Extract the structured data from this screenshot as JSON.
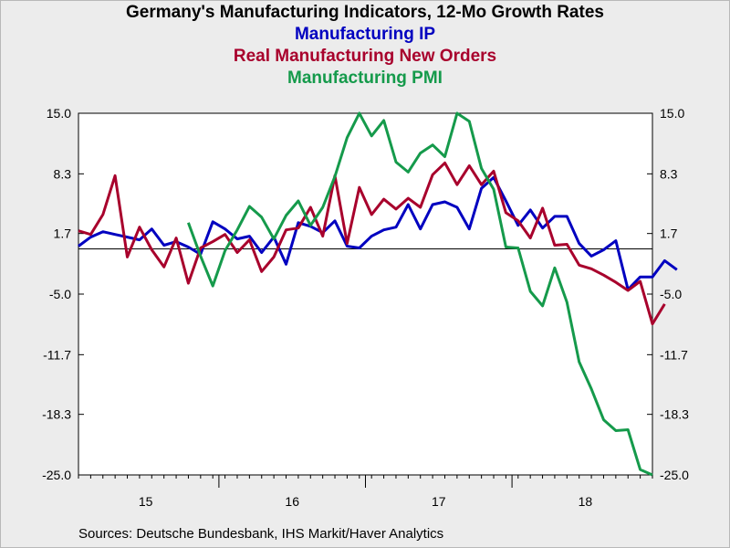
{
  "chart_data": {
    "type": "line",
    "title": "Germany's Manufacturing Indicators, 12-Mo Growth Rates",
    "y_ticks": [
      "15.0",
      "8.3",
      "1.7",
      "-5.0",
      "-11.7",
      "-18.3",
      "-25.0"
    ],
    "y_tick_values": [
      15.0,
      8.3,
      1.7,
      -5.0,
      -11.7,
      -18.3,
      -25.0
    ],
    "ylim": [
      -25.0,
      15.0
    ],
    "x_labels": [
      "15",
      "16",
      "17",
      "18"
    ],
    "x_label_months": [
      6,
      18,
      30,
      42
    ],
    "year_boundaries": [
      12,
      24,
      36,
      48
    ],
    "xlim": [
      0,
      47
    ],
    "zero_line": 0,
    "grid": false,
    "series": [
      {
        "name": "Manufacturing IP",
        "color": "#0000c0",
        "values": [
          0.3,
          1.3,
          1.9,
          1.6,
          1.3,
          1.0,
          2.2,
          0.4,
          0.8,
          0.2,
          -0.6,
          3.0,
          2.2,
          1.1,
          1.4,
          -0.4,
          1.3,
          -1.7,
          2.9,
          2.5,
          1.8,
          3.1,
          0.3,
          0.1,
          1.4,
          2.1,
          2.4,
          4.9,
          2.2,
          4.9,
          5.2,
          4.6,
          2.2,
          6.7,
          7.9,
          5.3,
          2.6,
          4.3,
          2.3,
          3.6,
          3.6,
          0.6,
          -0.8,
          -0.1,
          0.9,
          -4.5,
          -3.1,
          -3.1,
          -1.3,
          -2.3
        ]
      },
      {
        "name": "Real Manufacturing New Orders",
        "color": "#a8002c",
        "values": [
          2.0,
          1.6,
          3.8,
          8.1,
          -0.9,
          2.4,
          -0.1,
          -2.0,
          1.2,
          -3.8,
          0.1,
          0.8,
          1.6,
          -0.4,
          1.0,
          -2.5,
          -0.9,
          2.1,
          2.3,
          4.6,
          1.4,
          8.1,
          0.6,
          6.8,
          3.8,
          5.5,
          4.4,
          5.6,
          4.6,
          8.2,
          9.5,
          7.1,
          9.2,
          7.1,
          8.6,
          4.0,
          3.1,
          1.2,
          4.5,
          0.4,
          0.5,
          -1.8,
          -2.2,
          -2.9,
          -3.7,
          -4.6,
          -3.6,
          -8.3,
          -6.1
        ]
      },
      {
        "name": "Manufacturing PMI",
        "color": "#159a4b",
        "values": [
          2.9,
          -0.8,
          -4.1,
          -0.2,
          2.1,
          4.7,
          3.5,
          1.1,
          3.7,
          5.3,
          2.6,
          4.6,
          8.0,
          12.3,
          15.0,
          12.5,
          14.2,
          9.6,
          8.5,
          10.6,
          11.5,
          10.2,
          15.0,
          14.1,
          8.9,
          6.6,
          0.2,
          0.1,
          -4.7,
          -6.3,
          -2.1,
          -5.9,
          -12.5,
          -15.5,
          -18.9,
          -20.1,
          -20.0,
          -24.4,
          -25.0
        ]
      }
    ],
    "pmi_start_month": 9
  },
  "legend": {
    "line1": "Manufacturing IP",
    "line2": "Real Manufacturing New Orders",
    "line3": "Manufacturing PMI"
  },
  "source": "Sources:  Deutsche Bundesbank, IHS Markit/Haver Analytics"
}
